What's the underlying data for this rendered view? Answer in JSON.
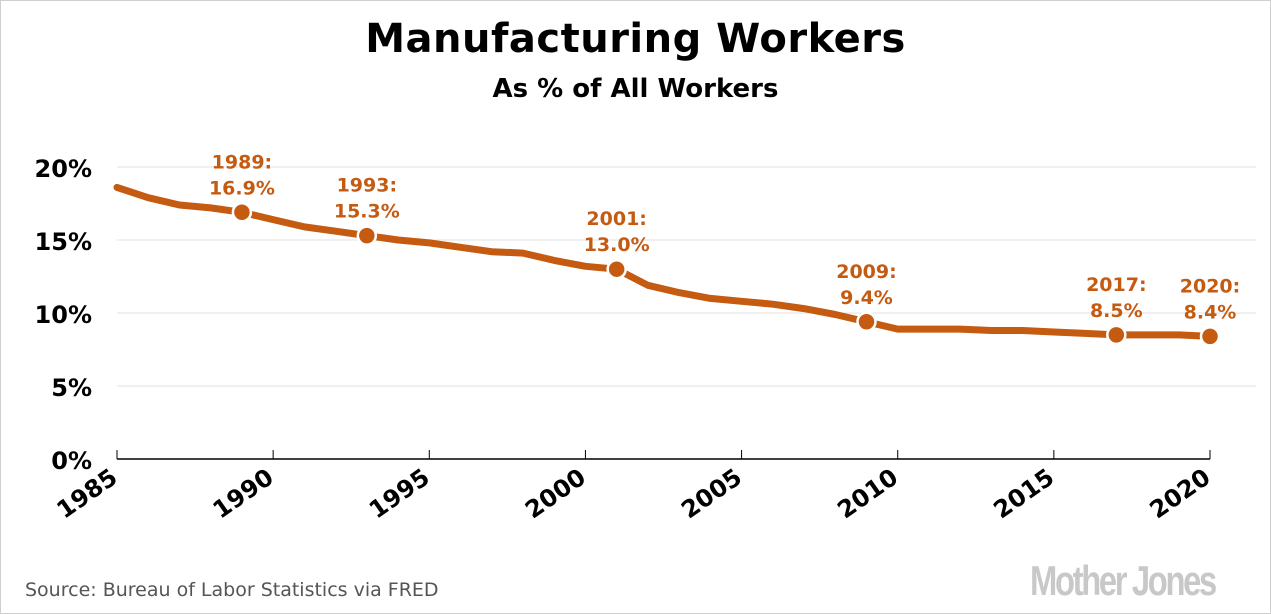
{
  "chart_data": {
    "type": "line",
    "title": "Manufacturing Workers",
    "subtitle": "As % of All Workers",
    "xlabel": "",
    "ylabel": "",
    "xlim": [
      1985,
      2020
    ],
    "ylim": [
      0,
      20
    ],
    "grid": true,
    "x_ticks": [
      1985,
      1990,
      1995,
      2000,
      2005,
      2010,
      2015,
      2020
    ],
    "x_tick_labels": [
      "1985",
      "1990",
      "1995",
      "2000",
      "2005",
      "2010",
      "2015",
      "2020"
    ],
    "y_ticks": [
      0,
      5,
      10,
      15,
      20
    ],
    "y_tick_labels": [
      "0%",
      "5%",
      "10%",
      "15%",
      "20%"
    ],
    "series": [
      {
        "name": "Manufacturing workers as % of all workers",
        "color": "#c55a11",
        "x": [
          1985,
          1986,
          1987,
          1988,
          1989,
          1990,
          1991,
          1992,
          1993,
          1994,
          1995,
          1996,
          1997,
          1998,
          1999,
          2000,
          2001,
          2002,
          2003,
          2004,
          2005,
          2006,
          2007,
          2008,
          2009,
          2010,
          2011,
          2012,
          2013,
          2014,
          2015,
          2016,
          2017,
          2018,
          2019,
          2020
        ],
        "values": [
          18.6,
          17.9,
          17.4,
          17.2,
          16.9,
          16.4,
          15.9,
          15.6,
          15.3,
          15.0,
          14.8,
          14.5,
          14.2,
          14.1,
          13.6,
          13.2,
          13.0,
          11.9,
          11.4,
          11.0,
          10.8,
          10.6,
          10.3,
          9.9,
          9.4,
          8.9,
          8.9,
          8.9,
          8.8,
          8.8,
          8.7,
          8.6,
          8.5,
          8.5,
          8.5,
          8.4
        ]
      }
    ],
    "annotations": [
      {
        "year_label": "1989:",
        "value_label": "16.9%",
        "x": 1989,
        "y": 16.9
      },
      {
        "year_label": "1993:",
        "value_label": "15.3%",
        "x": 1993,
        "y": 15.3
      },
      {
        "year_label": "2001:",
        "value_label": "13.0%",
        "x": 2001,
        "y": 13.0
      },
      {
        "year_label": "2009:",
        "value_label": "9.4%",
        "x": 2009,
        "y": 9.4
      },
      {
        "year_label": "2017:",
        "value_label": "8.5%",
        "x": 2017,
        "y": 8.5
      },
      {
        "year_label": "2020:",
        "value_label": "8.4%",
        "x": 2020,
        "y": 8.4
      }
    ]
  },
  "source": "Source: Bureau of Labor Statistics via FRED",
  "logo": "Mother Jones"
}
